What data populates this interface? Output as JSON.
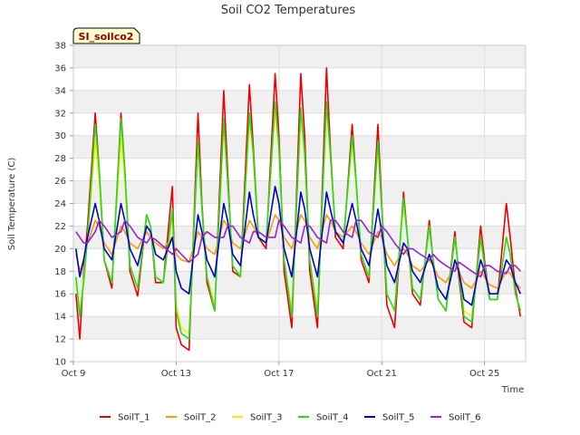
{
  "chart_data": {
    "type": "line",
    "title": "Soil CO2 Temperatures",
    "badge": "SI_soilco2",
    "xlabel": "Time",
    "ylabel": "Soil Temperature (C)",
    "ylim": [
      10,
      38
    ],
    "yticks": [
      10,
      12,
      14,
      16,
      18,
      20,
      22,
      24,
      26,
      28,
      30,
      32,
      34,
      36,
      38
    ],
    "xlim": [
      9,
      26.6
    ],
    "xticks": [
      {
        "x": 9,
        "label": "Oct 9"
      },
      {
        "x": 13,
        "label": "Oct 13"
      },
      {
        "x": 17,
        "label": "Oct 17"
      },
      {
        "x": 21,
        "label": "Oct 21"
      },
      {
        "x": 25,
        "label": "Oct 25"
      }
    ],
    "grid": true,
    "legend_position": "bottom",
    "series": [
      {
        "name": "SoilT_1",
        "color": "#ee0000",
        "x": [
          9.1,
          9.25,
          9.4,
          9.55,
          9.85,
          10.0,
          10.2,
          10.5,
          10.85,
          11.0,
          11.2,
          11.5,
          11.85,
          12.0,
          12.2,
          12.5,
          12.85,
          13.0,
          13.2,
          13.5,
          13.85,
          14.0,
          14.2,
          14.5,
          14.85,
          15.0,
          15.2,
          15.5,
          15.85,
          16.0,
          16.2,
          16.5,
          16.85,
          17.0,
          17.2,
          17.5,
          17.85,
          18.0,
          18.2,
          18.5,
          18.85,
          19.0,
          19.2,
          19.5,
          19.85,
          20.0,
          20.2,
          20.5,
          20.85,
          21.0,
          21.2,
          21.5,
          21.85,
          22.0,
          22.2,
          22.5,
          22.85,
          23.0,
          23.2,
          23.5,
          23.85,
          24.0,
          24.2,
          24.5,
          24.85,
          25.0,
          25.2,
          25.5,
          25.85,
          26.0,
          26.2,
          26.4
        ],
        "y": [
          16.0,
          12.0,
          18.0,
          22.0,
          32.0,
          27.0,
          19.0,
          16.5,
          32.0,
          27.0,
          18.0,
          15.8,
          23.0,
          22.0,
          17.0,
          17.0,
          25.5,
          13.0,
          11.5,
          11.0,
          32.0,
          24.0,
          17.0,
          14.5,
          34.0,
          27.0,
          18.0,
          17.5,
          34.5,
          29.0,
          21.0,
          20.0,
          35.5,
          30.0,
          18.0,
          13.0,
          35.5,
          30.0,
          18.0,
          13.0,
          36.0,
          29.0,
          21.0,
          20.0,
          31.0,
          26.0,
          19.0,
          17.0,
          31.0,
          24.0,
          15.0,
          13.0,
          25.0,
          21.0,
          16.0,
          15.0,
          22.5,
          19.0,
          15.5,
          14.5,
          21.5,
          17.5,
          13.5,
          13.0,
          22.0,
          19.0,
          15.5,
          15.5,
          24.0,
          21.0,
          16.5,
          14.0
        ]
      },
      {
        "name": "SoilT_2",
        "color": "#ff9900",
        "x": [
          9.1,
          9.25,
          9.4,
          9.55,
          9.85,
          10.0,
          10.2,
          10.5,
          10.85,
          11.0,
          11.2,
          11.5,
          11.85,
          12.0,
          12.2,
          12.5,
          12.85,
          13.0,
          13.2,
          13.5,
          13.85,
          14.0,
          14.2,
          14.5,
          14.85,
          15.0,
          15.2,
          15.5,
          15.85,
          16.0,
          16.2,
          16.5,
          16.85,
          17.0,
          17.2,
          17.5,
          17.85,
          18.0,
          18.2,
          18.5,
          18.85,
          19.0,
          19.2,
          19.5,
          19.85,
          20.0,
          20.2,
          20.5,
          20.85,
          21.0,
          21.2,
          21.5,
          21.85,
          22.0,
          22.2,
          22.5,
          22.85,
          23.0,
          23.2,
          23.5,
          23.85,
          24.0,
          24.2,
          24.5,
          24.85,
          25.0,
          25.2,
          25.5,
          25.85,
          26.0,
          26.2,
          26.4
        ],
        "y": [
          19.5,
          18.0,
          19.0,
          20.5,
          22.5,
          22.0,
          20.5,
          19.5,
          22.0,
          21.5,
          20.5,
          20.0,
          21.5,
          21.0,
          20.5,
          20.0,
          21.0,
          19.5,
          19.0,
          18.8,
          21.5,
          21.0,
          20.0,
          19.5,
          22.5,
          22.0,
          20.5,
          20.0,
          22.5,
          22.0,
          21.0,
          20.5,
          23.0,
          22.5,
          21.0,
          20.0,
          23.0,
          22.5,
          21.0,
          20.0,
          23.0,
          22.5,
          21.5,
          21.0,
          22.0,
          21.5,
          20.5,
          19.5,
          21.5,
          21.0,
          19.5,
          18.5,
          20.0,
          19.5,
          18.5,
          18.0,
          19.0,
          18.5,
          17.5,
          17.0,
          18.5,
          18.0,
          17.0,
          16.5,
          18.0,
          17.5,
          16.8,
          16.5,
          18.0,
          17.8,
          17.0,
          16.5
        ]
      },
      {
        "name": "SoilT_3",
        "color": "#ffee00",
        "x": [
          9.1,
          9.25,
          9.4,
          9.55,
          9.85,
          10.0,
          10.2,
          10.5,
          10.85,
          11.0,
          11.2,
          11.5,
          11.85,
          12.0,
          12.2,
          12.5,
          12.85,
          13.0,
          13.2,
          13.5,
          13.85,
          14.0,
          14.2,
          14.5,
          14.85,
          15.0,
          15.2,
          15.5,
          15.85,
          16.0,
          16.2,
          16.5,
          16.85,
          17.0,
          17.2,
          17.5,
          17.85,
          18.0,
          18.2,
          18.5,
          18.85,
          19.0,
          19.2,
          19.5,
          19.85,
          20.0,
          20.2,
          20.5,
          20.85,
          21.0,
          21.2,
          21.5,
          21.85,
          22.0,
          22.2,
          22.5,
          22.85,
          23.0,
          23.2,
          23.5,
          23.85,
          24.0,
          24.2,
          24.5,
          24.85,
          25.0,
          25.2,
          25.5,
          25.85,
          26.0,
          26.2,
          26.4
        ],
        "y": [
          17.0,
          14.5,
          17.5,
          21.0,
          29.5,
          26.0,
          19.0,
          17.0,
          30.0,
          26.0,
          18.5,
          16.5,
          23.0,
          22.0,
          17.5,
          17.0,
          23.0,
          15.0,
          13.0,
          12.5,
          29.5,
          23.5,
          17.5,
          15.0,
          31.0,
          26.0,
          18.5,
          17.5,
          31.5,
          28.0,
          21.0,
          20.5,
          32.5,
          28.5,
          19.0,
          14.5,
          32.0,
          28.0,
          19.0,
          14.5,
          32.5,
          28.0,
          21.5,
          20.5,
          29.5,
          25.5,
          19.5,
          17.5,
          29.0,
          23.5,
          16.0,
          14.5,
          24.0,
          21.0,
          16.5,
          15.5,
          22.0,
          19.0,
          15.5,
          14.5,
          21.0,
          18.0,
          14.5,
          14.0,
          21.0,
          18.5,
          15.5,
          15.5,
          21.0,
          19.5,
          16.0,
          14.5
        ]
      },
      {
        "name": "SoilT_4",
        "color": "#22dd22",
        "x": [
          9.1,
          9.25,
          9.4,
          9.55,
          9.85,
          10.0,
          10.2,
          10.5,
          10.85,
          11.0,
          11.2,
          11.5,
          11.85,
          12.0,
          12.2,
          12.5,
          12.85,
          13.0,
          13.2,
          13.5,
          13.85,
          14.0,
          14.2,
          14.5,
          14.85,
          15.0,
          15.2,
          15.5,
          15.85,
          16.0,
          16.2,
          16.5,
          16.85,
          17.0,
          17.2,
          17.5,
          17.85,
          18.0,
          18.2,
          18.5,
          18.85,
          19.0,
          19.2,
          19.5,
          19.85,
          20.0,
          20.2,
          20.5,
          20.85,
          21.0,
          21.2,
          21.5,
          21.85,
          22.0,
          22.2,
          22.5,
          22.85,
          23.0,
          23.2,
          23.5,
          23.85,
          24.0,
          24.2,
          24.5,
          24.85,
          25.0,
          25.2,
          25.5,
          25.85,
          26.0,
          26.2,
          26.4
        ],
        "y": [
          17.5,
          14.0,
          17.0,
          21.0,
          31.0,
          27.0,
          19.0,
          17.0,
          31.5,
          27.0,
          18.5,
          16.5,
          23.0,
          22.0,
          17.5,
          17.0,
          23.5,
          14.5,
          12.5,
          12.0,
          29.5,
          23.5,
          17.5,
          14.5,
          31.5,
          26.0,
          18.5,
          17.5,
          32.0,
          28.5,
          21.0,
          20.5,
          33.0,
          29.0,
          19.0,
          14.0,
          32.5,
          28.5,
          19.0,
          14.0,
          33.0,
          28.5,
          21.5,
          20.5,
          30.0,
          26.0,
          19.5,
          17.5,
          29.5,
          23.5,
          16.0,
          14.5,
          24.5,
          21.0,
          16.5,
          15.5,
          22.0,
          19.0,
          15.5,
          14.5,
          21.0,
          18.0,
          14.0,
          13.5,
          21.0,
          18.5,
          15.5,
          15.5,
          21.0,
          19.5,
          16.0,
          14.5
        ]
      },
      {
        "name": "SoilT_5",
        "color": "#0000cc",
        "x": [
          9.1,
          9.25,
          9.4,
          9.55,
          9.85,
          10.0,
          10.2,
          10.5,
          10.85,
          11.0,
          11.2,
          11.5,
          11.85,
          12.0,
          12.2,
          12.5,
          12.85,
          13.0,
          13.2,
          13.5,
          13.85,
          14.0,
          14.2,
          14.5,
          14.85,
          15.0,
          15.2,
          15.5,
          15.85,
          16.0,
          16.2,
          16.5,
          16.85,
          17.0,
          17.2,
          17.5,
          17.85,
          18.0,
          18.2,
          18.5,
          18.85,
          19.0,
          19.2,
          19.5,
          19.85,
          20.0,
          20.2,
          20.5,
          20.85,
          21.0,
          21.2,
          21.5,
          21.85,
          22.0,
          22.2,
          22.5,
          22.85,
          23.0,
          23.2,
          23.5,
          23.85,
          24.0,
          24.2,
          24.5,
          24.85,
          25.0,
          25.2,
          25.5,
          25.85,
          26.0,
          26.2,
          26.4
        ],
        "y": [
          20.0,
          17.5,
          19.0,
          21.0,
          24.0,
          22.5,
          20.0,
          19.0,
          24.0,
          22.5,
          20.0,
          18.5,
          22.0,
          21.5,
          19.5,
          19.0,
          21.0,
          18.0,
          16.5,
          16.0,
          23.0,
          21.5,
          19.0,
          17.5,
          24.0,
          22.5,
          19.5,
          18.5,
          25.0,
          23.0,
          21.0,
          20.5,
          25.5,
          24.0,
          20.0,
          17.5,
          25.0,
          23.5,
          20.0,
          17.5,
          25.0,
          23.5,
          21.5,
          20.5,
          24.0,
          22.5,
          20.0,
          18.5,
          23.5,
          21.5,
          18.5,
          17.0,
          20.5,
          20.0,
          18.0,
          17.0,
          19.5,
          18.5,
          16.5,
          15.5,
          19.0,
          18.0,
          15.5,
          15.0,
          19.0,
          18.0,
          16.0,
          16.0,
          19.0,
          18.5,
          17.0,
          16.0
        ]
      },
      {
        "name": "SoilT_6",
        "color": "#9922cc",
        "x": [
          9.1,
          9.25,
          9.4,
          9.55,
          9.85,
          10.0,
          10.2,
          10.5,
          10.85,
          11.0,
          11.2,
          11.5,
          11.85,
          12.0,
          12.2,
          12.5,
          12.85,
          13.0,
          13.2,
          13.5,
          13.85,
          14.0,
          14.2,
          14.5,
          14.85,
          15.0,
          15.2,
          15.5,
          15.85,
          16.0,
          16.2,
          16.5,
          16.85,
          17.0,
          17.2,
          17.5,
          17.85,
          18.0,
          18.2,
          18.5,
          18.85,
          19.0,
          19.2,
          19.5,
          19.85,
          20.0,
          20.2,
          20.5,
          20.85,
          21.0,
          21.2,
          21.5,
          21.85,
          22.0,
          22.2,
          22.5,
          22.85,
          23.0,
          23.2,
          23.5,
          23.85,
          24.0,
          24.2,
          24.5,
          24.85,
          25.0,
          25.2,
          25.5,
          25.85,
          26.0,
          26.2,
          26.4
        ],
        "y": [
          21.5,
          21.0,
          20.5,
          20.5,
          21.5,
          22.5,
          22.0,
          21.0,
          21.5,
          22.5,
          22.0,
          21.0,
          20.5,
          21.0,
          20.8,
          20.2,
          19.5,
          20.0,
          19.5,
          18.8,
          19.5,
          21.0,
          21.5,
          21.0,
          21.0,
          22.0,
          22.0,
          21.0,
          20.5,
          21.5,
          21.5,
          21.0,
          21.0,
          22.5,
          22.0,
          21.0,
          20.5,
          22.0,
          22.0,
          21.0,
          20.5,
          22.5,
          22.5,
          21.5,
          21.0,
          22.5,
          22.5,
          21.5,
          21.0,
          22.0,
          21.5,
          20.5,
          19.5,
          20.0,
          20.0,
          19.5,
          19.0,
          19.5,
          19.0,
          18.5,
          18.0,
          18.8,
          18.5,
          18.0,
          17.5,
          18.5,
          18.5,
          18.0,
          17.8,
          18.5,
          18.5,
          18.0
        ]
      }
    ]
  }
}
